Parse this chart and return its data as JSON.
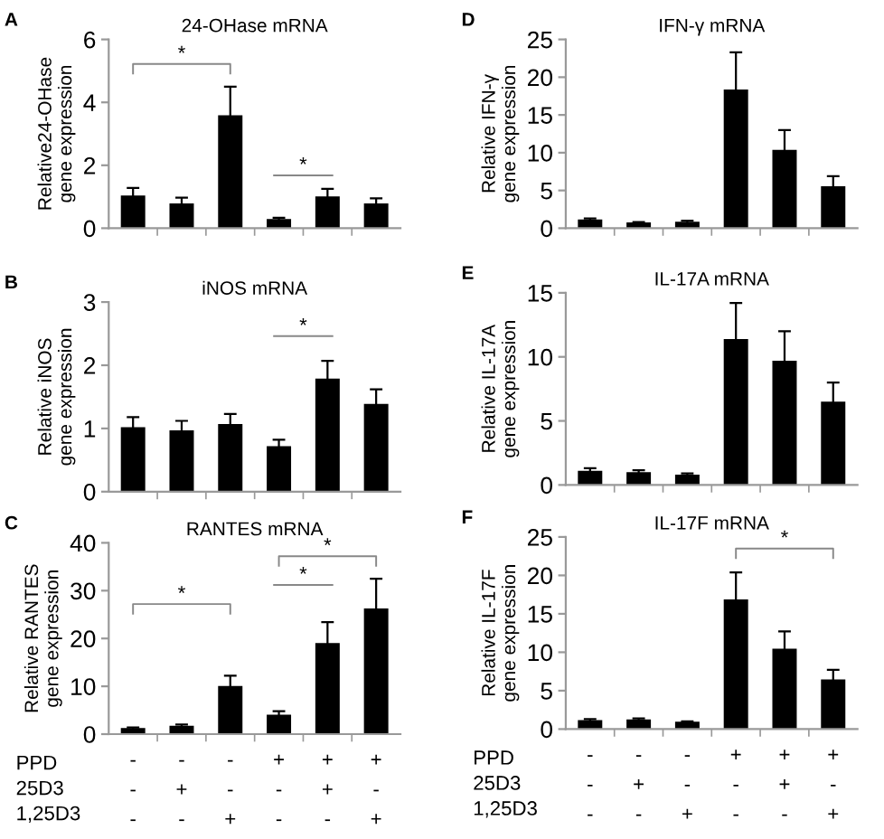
{
  "chart_data": [
    {
      "type": "bar",
      "title": "24-OHase mRNA",
      "ylabel": "Relative24-OHase\ngene expression",
      "categories": [
        null,
        null,
        null,
        null,
        null,
        null
      ],
      "tick_labels": "y",
      "color": "#000000",
      "ylim": [
        0,
        6
      ],
      "yticks": [
        0,
        2,
        4,
        6
      ],
      "values": [
        1.0,
        0.75,
        3.55,
        0.25,
        0.97,
        0.75
      ],
      "errors": [
        0.28,
        0.22,
        0.95,
        0.08,
        0.28,
        0.2
      ],
      "annotations": [
        "A",
        "*",
        "*"
      ]
    },
    {
      "type": "bar",
      "title": "iNOS mRNA",
      "ylabel": "Relative iNOS\ngene expression",
      "categories": [
        null,
        null,
        null,
        null,
        null,
        null
      ],
      "tick_labels": "y",
      "color": "#000000",
      "ylim": [
        0,
        3
      ],
      "yticks": [
        0,
        1,
        2,
        3
      ],
      "values": [
        1.0,
        0.95,
        1.05,
        0.7,
        1.77,
        1.37
      ],
      "errors": [
        0.18,
        0.17,
        0.18,
        0.12,
        0.3,
        0.25
      ],
      "annotations": [
        "B",
        "*"
      ]
    },
    {
      "type": "bar",
      "title": "RANTES mRNA",
      "ylabel": "Relative RANTES\ngene expression",
      "categories": [
        "-\n-\n-",
        "-\n+\n-",
        "-\n-\n+",
        "+\n-\n-",
        "+\n+\n-",
        "+\n-\n+"
      ],
      "color": "#000000",
      "ylim": [
        0,
        40
      ],
      "yticks": [
        0,
        10,
        20,
        30,
        40
      ],
      "values": [
        1.0,
        1.5,
        9.8,
        3.8,
        18.8,
        26.0
      ],
      "errors": [
        0.4,
        0.5,
        2.4,
        1.0,
        4.6,
        6.5
      ],
      "annotations": [
        "C",
        "PPD",
        "25D3",
        "1,25D3",
        "*",
        "*",
        "*"
      ]
    },
    {
      "type": "bar",
      "title": "IFN-γ mRNA",
      "ylabel": "Relative IFN-γ\ngene expression",
      "categories": [
        null,
        null,
        null,
        null,
        null,
        null
      ],
      "tick_labels": "y",
      "color": "#000000",
      "ylim": [
        0,
        25
      ],
      "yticks": [
        0,
        5,
        10,
        15,
        20,
        25
      ],
      "values": [
        1.0,
        0.6,
        0.7,
        18.2,
        10.2,
        5.4
      ],
      "errors": [
        0.3,
        0.2,
        0.3,
        5.1,
        2.8,
        1.5
      ],
      "annotations": [
        "D"
      ]
    },
    {
      "type": "bar",
      "title": "IL-17A mRNA",
      "ylabel": "Relative IL-17A\ngene expression",
      "categories": [
        null,
        null,
        null,
        null,
        null,
        null
      ],
      "tick_labels": "y",
      "color": "#000000",
      "ylim": [
        0,
        15
      ],
      "yticks": [
        0,
        5,
        10,
        15
      ],
      "values": [
        1.0,
        0.9,
        0.7,
        11.3,
        9.6,
        6.4
      ],
      "errors": [
        0.3,
        0.25,
        0.2,
        2.9,
        2.4,
        1.6
      ],
      "annotations": [
        "E"
      ]
    },
    {
      "type": "bar",
      "title": "IL-17F mRNA",
      "ylabel": "Relative IL-17F\ngene expression",
      "categories": [
        "-\n-\n-",
        "-\n+\n-",
        "-\n-\n+",
        "+\n-\n-",
        "+\n+\n-",
        "+\n-\n+"
      ],
      "color": "#000000",
      "ylim": [
        0,
        25
      ],
      "yticks": [
        0,
        5,
        10,
        15,
        20,
        25
      ],
      "values": [
        1.0,
        1.1,
        0.8,
        16.7,
        10.3,
        6.3
      ],
      "errors": [
        0.3,
        0.3,
        0.2,
        3.7,
        2.4,
        1.4
      ],
      "annotations": [
        "F",
        "PPD",
        "25D3",
        "1,25D3",
        "*"
      ]
    }
  ]
}
